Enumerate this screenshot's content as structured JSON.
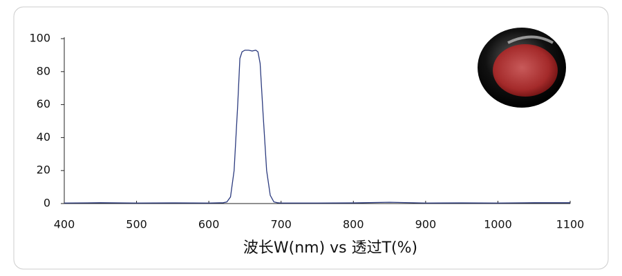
{
  "chart_data": {
    "type": "line",
    "x_label": "波长W(nm) vs 透过T(%)",
    "x": [
      400,
      450,
      500,
      550,
      600,
      620,
      625,
      630,
      635,
      640,
      643,
      646,
      650,
      655,
      660,
      665,
      668,
      671,
      675,
      680,
      685,
      690,
      695,
      700,
      750,
      800,
      850,
      900,
      950,
      1000,
      1050,
      1100
    ],
    "series": [
      {
        "color": "#2b3a7e",
        "values": [
          0.3,
          0.5,
          0.3,
          0.4,
          0.3,
          0.5,
          1,
          4,
          20,
          60,
          88,
          92,
          93,
          93,
          92.5,
          93,
          92,
          85,
          55,
          20,
          5,
          1,
          0.5,
          0.3,
          0.3,
          0.4,
          0.8,
          0.3,
          0.4,
          0.3,
          0.5,
          0.5
        ]
      }
    ],
    "xlim": [
      400,
      1100
    ],
    "xticks": [
      400,
      500,
      600,
      700,
      800,
      900,
      1000,
      1100
    ],
    "ylim": [
      0,
      100
    ],
    "yticks": [
      0,
      20,
      40,
      60,
      80,
      100
    ]
  }
}
